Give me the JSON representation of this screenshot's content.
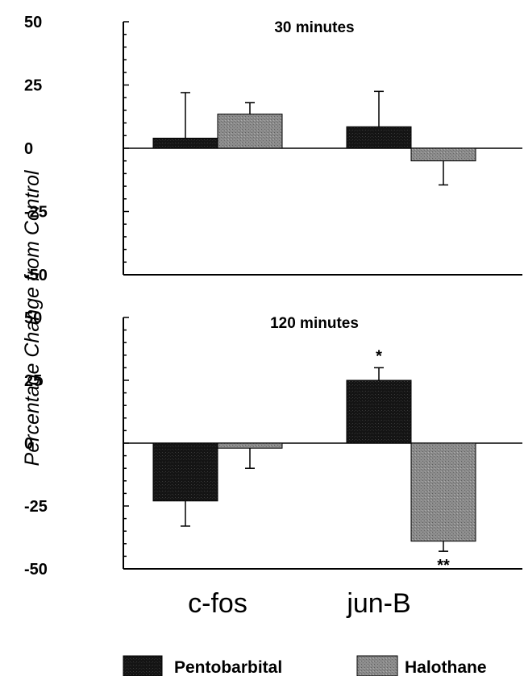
{
  "chart_data": {
    "type": "bar",
    "ylabel": "Percentage Change from Control",
    "categories": [
      "c-fos",
      "jun-B"
    ],
    "legend": {
      "placement": "bottom",
      "entries": [
        {
          "name": "Pentobarbital",
          "color": "#141414"
        },
        {
          "name": "Halothane",
          "color": "#8c8c8c"
        }
      ]
    },
    "ylim": [
      -50,
      50
    ],
    "yticks": [
      "50",
      "25",
      "0",
      "-25",
      "-50"
    ],
    "panels": [
      {
        "title": "30 minutes",
        "series": [
          {
            "name": "Pentobarbital",
            "values": [
              4,
              8.5
            ],
            "errors": [
              18,
              14
            ],
            "sig": [
              "",
              ""
            ]
          },
          {
            "name": "Halothane",
            "values": [
              13.5,
              -5
            ],
            "errors": [
              4.5,
              9.5
            ],
            "sig": [
              "",
              ""
            ]
          }
        ]
      },
      {
        "title": "120 minutes",
        "series": [
          {
            "name": "Pentobarbital",
            "values": [
              -23,
              25
            ],
            "errors": [
              10,
              5
            ],
            "sig": [
              "",
              "*"
            ]
          },
          {
            "name": "Halothane",
            "values": [
              -2,
              -39
            ],
            "errors": [
              8,
              4
            ],
            "sig": [
              "",
              "**"
            ]
          }
        ]
      }
    ]
  }
}
